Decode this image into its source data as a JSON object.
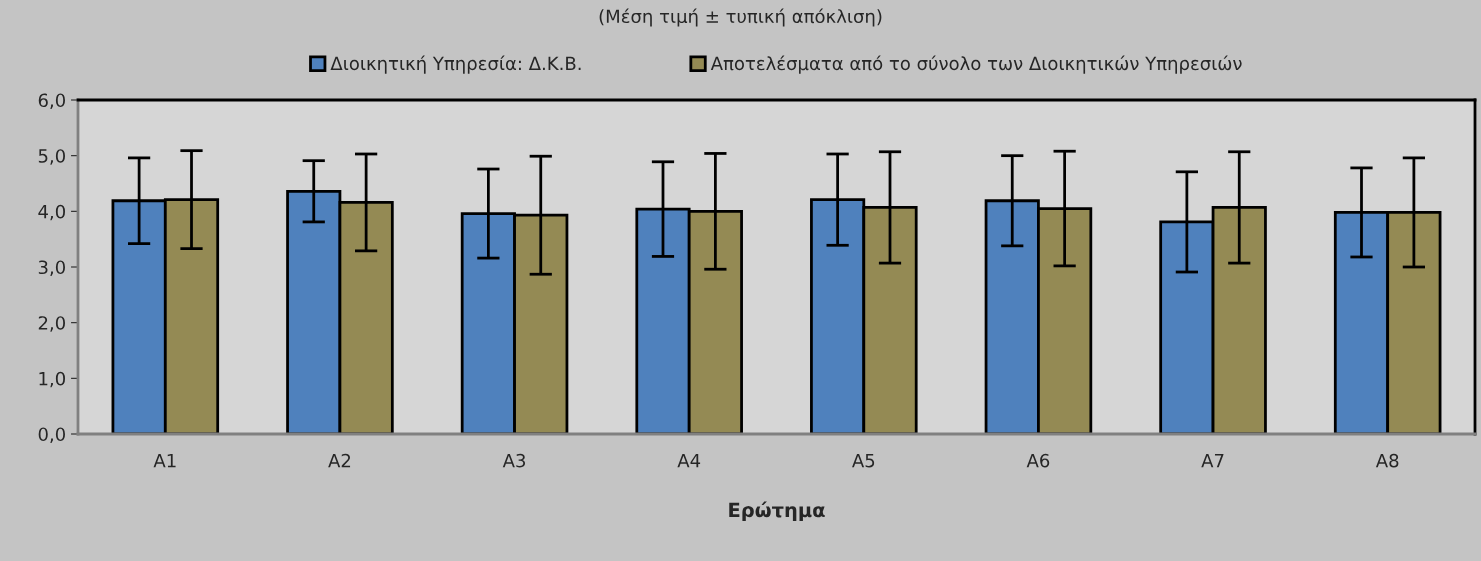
{
  "chart_data": {
    "type": "bar",
    "title": "(Μέση τιμή ± τυπική απόκλιση)",
    "xlabel": "Ερώτημα",
    "categories": [
      "A1",
      "A2",
      "A3",
      "A4",
      "A5",
      "A6",
      "A7",
      "A8"
    ],
    "series": [
      {
        "name": "Διοικητική Υπηρεσία: Δ.Κ.Β.",
        "color": "#4f81bd",
        "values": [
          4.19,
          4.36,
          3.96,
          4.04,
          4.21,
          4.19,
          3.81,
          3.98
        ],
        "errors": [
          0.77,
          0.55,
          0.8,
          0.85,
          0.82,
          0.81,
          0.9,
          0.8
        ]
      },
      {
        "name": "Αποτελέσματα από το σύνολο των Διοικητικών Υπηρεσιών",
        "color": "#948a54",
        "values": [
          4.21,
          4.16,
          3.93,
          4.0,
          4.07,
          4.05,
          4.07,
          3.98
        ],
        "errors": [
          0.88,
          0.87,
          1.06,
          1.04,
          1.0,
          1.03,
          1.0,
          0.98
        ]
      }
    ],
    "ylim": [
      0,
      6
    ],
    "yticks": [
      {
        "value": 0,
        "label": "0,0"
      },
      {
        "value": 1,
        "label": "1,0"
      },
      {
        "value": 2,
        "label": "2,0"
      },
      {
        "value": 3,
        "label": "3,0"
      },
      {
        "value": 4,
        "label": "4,0"
      },
      {
        "value": 5,
        "label": "5,0"
      },
      {
        "value": 6,
        "label": "6,0"
      }
    ],
    "grid": false,
    "legend": "top"
  }
}
